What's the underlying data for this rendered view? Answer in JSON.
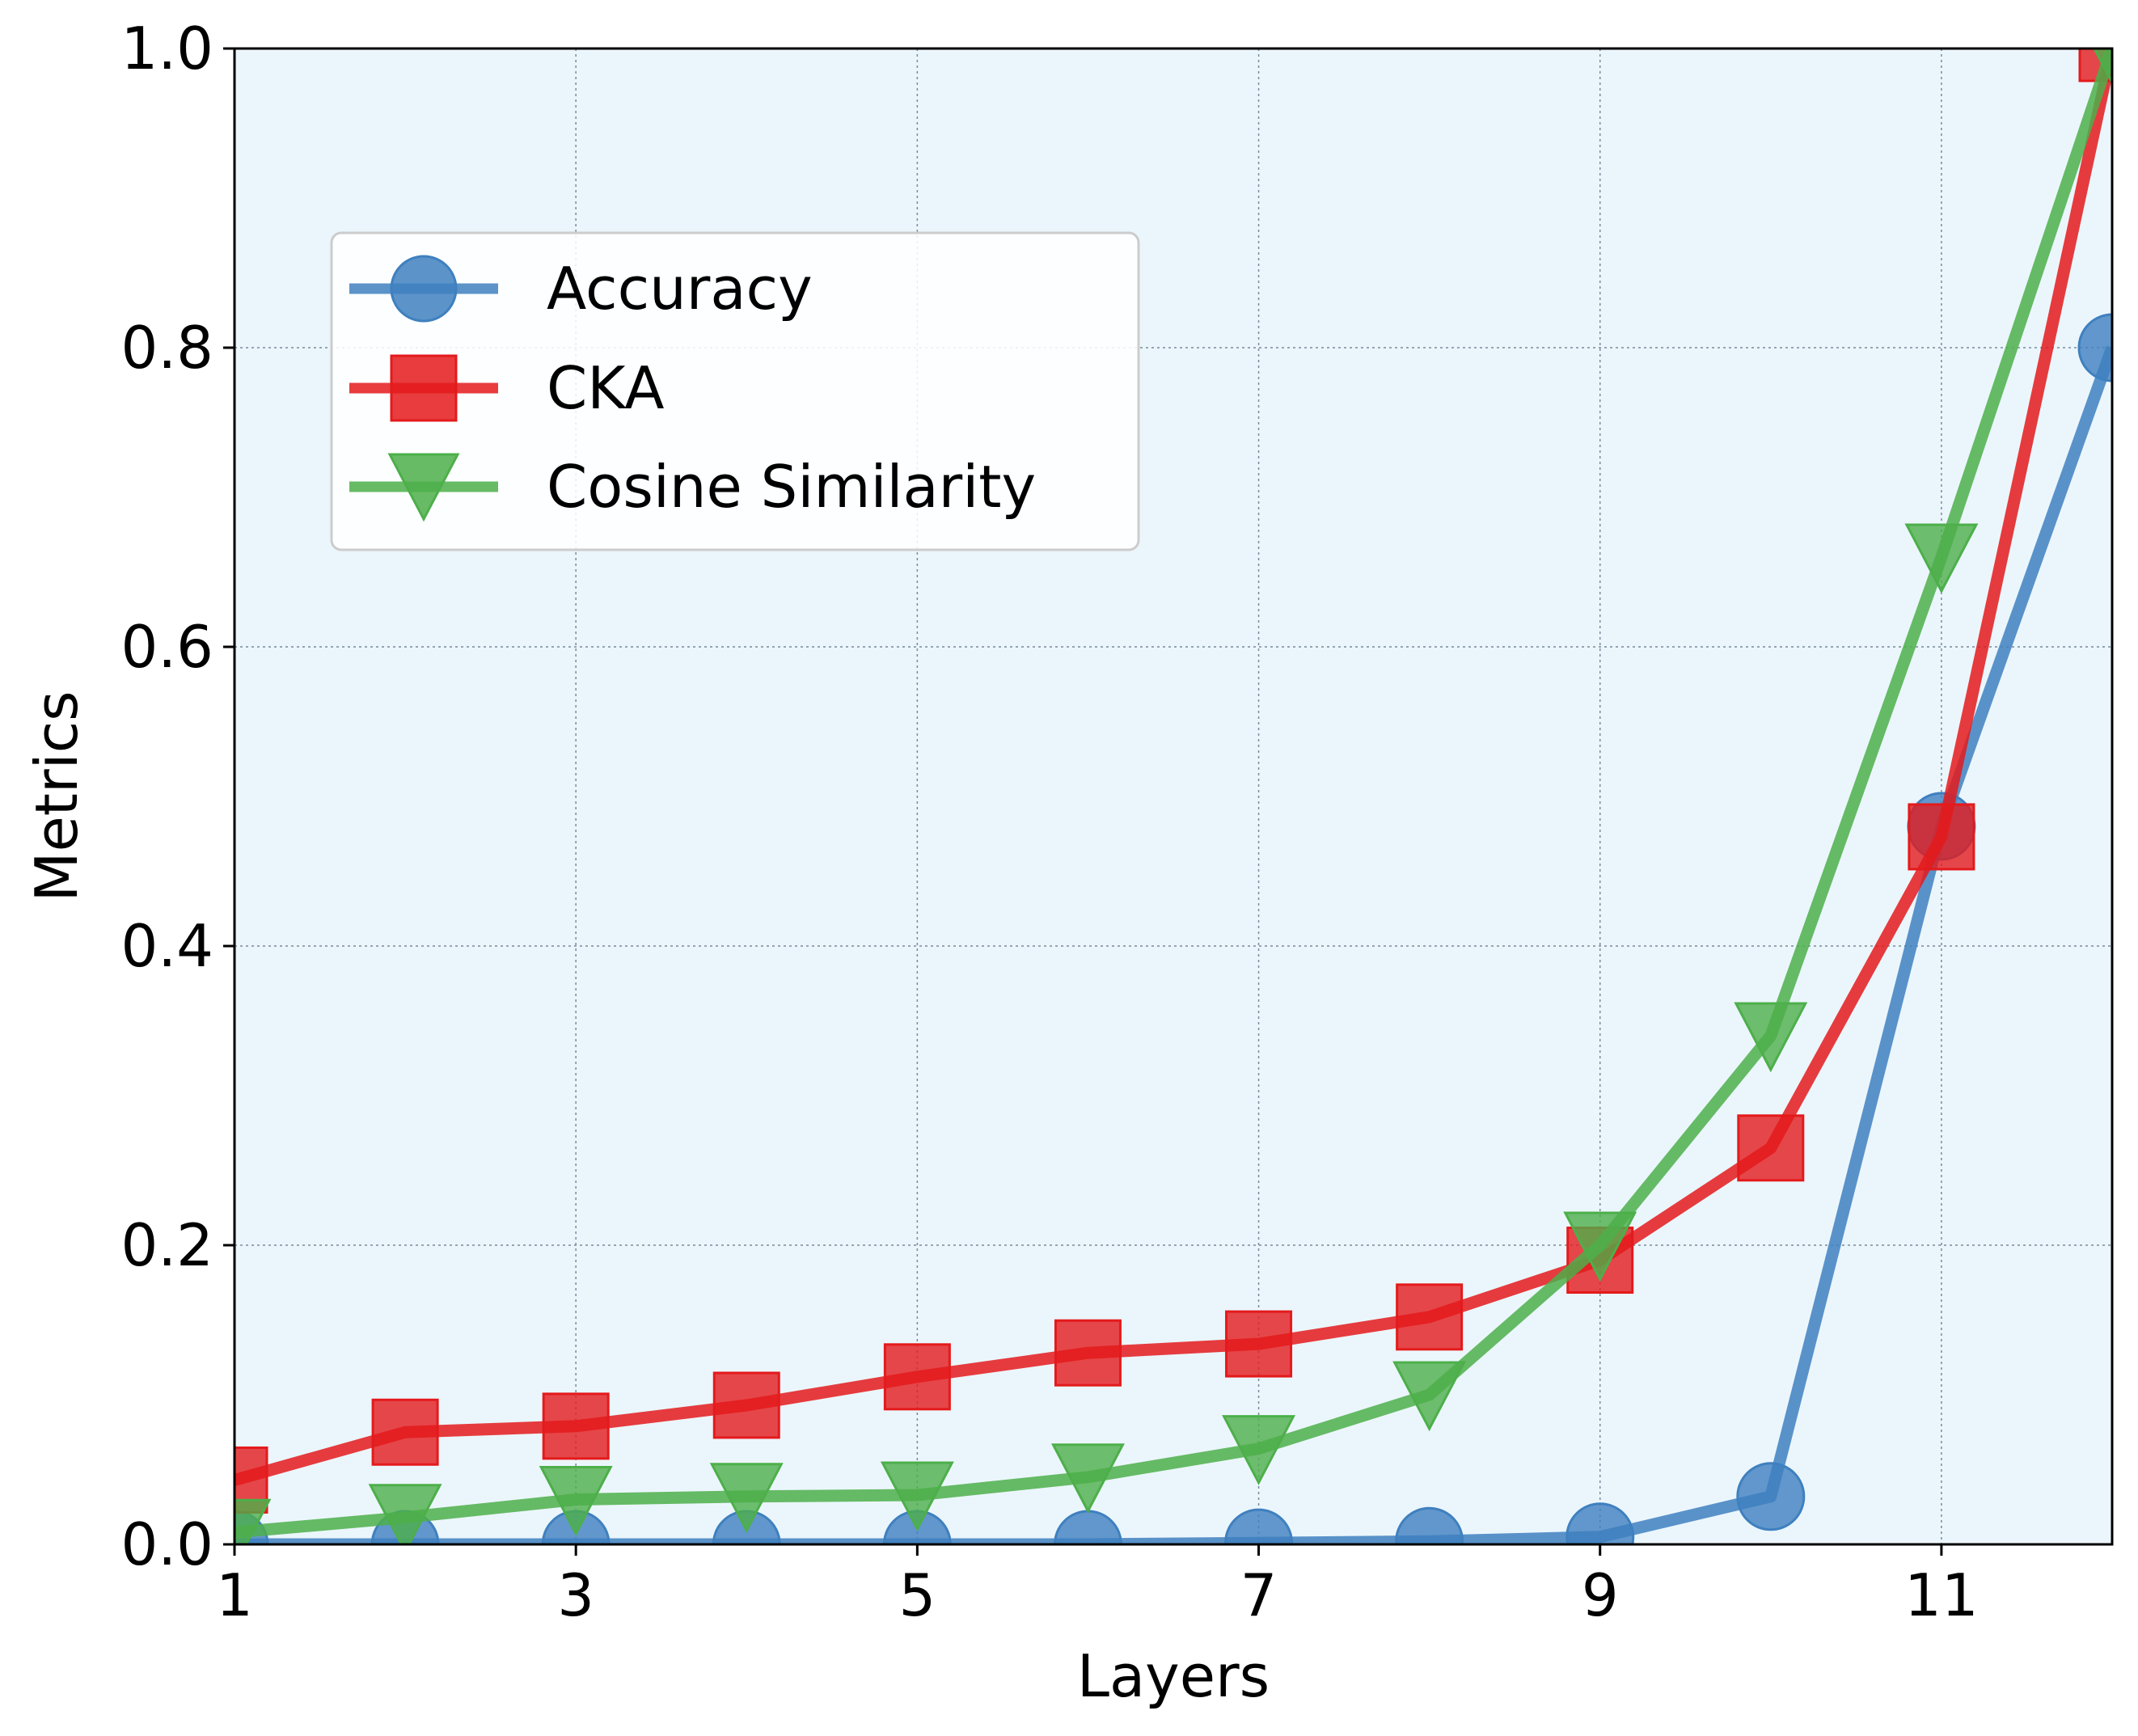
{
  "chart_data": {
    "type": "line",
    "title": "",
    "xlabel": "Layers",
    "ylabel": "Metrics",
    "xlim": [
      1,
      12
    ],
    "ylim": [
      0,
      1.0
    ],
    "xticks": [
      "1",
      "3",
      "5",
      "7",
      "9",
      "11"
    ],
    "yticks": [
      "0.0",
      "0.2",
      "0.4",
      "0.6",
      "0.8",
      "1.0"
    ],
    "grid": true,
    "legend_position": "upper-left",
    "background_color": "#ebf6fc",
    "x": [
      1,
      2,
      3,
      4,
      5,
      6,
      7,
      8,
      9,
      10,
      11,
      12
    ],
    "series": [
      {
        "name": "Accuracy",
        "marker": "circle",
        "color": "#3f80bf",
        "values": [
          0.0,
          0.0,
          0.0,
          0.0,
          0.0,
          0.0,
          0.001,
          0.002,
          0.005,
          0.032,
          0.48,
          0.8
        ]
      },
      {
        "name": "CKA",
        "marker": "square",
        "color": "#e41a1c",
        "values": [
          0.043,
          0.075,
          0.079,
          0.093,
          0.112,
          0.128,
          0.134,
          0.152,
          0.19,
          0.265,
          0.473,
          1.0
        ]
      },
      {
        "name": "Cosine Similarity",
        "marker": "triangle-down",
        "color": "#4daf4a",
        "values": [
          0.008,
          0.018,
          0.03,
          0.032,
          0.033,
          0.045,
          0.064,
          0.1,
          0.2,
          0.34,
          0.66,
          1.0
        ]
      }
    ]
  }
}
